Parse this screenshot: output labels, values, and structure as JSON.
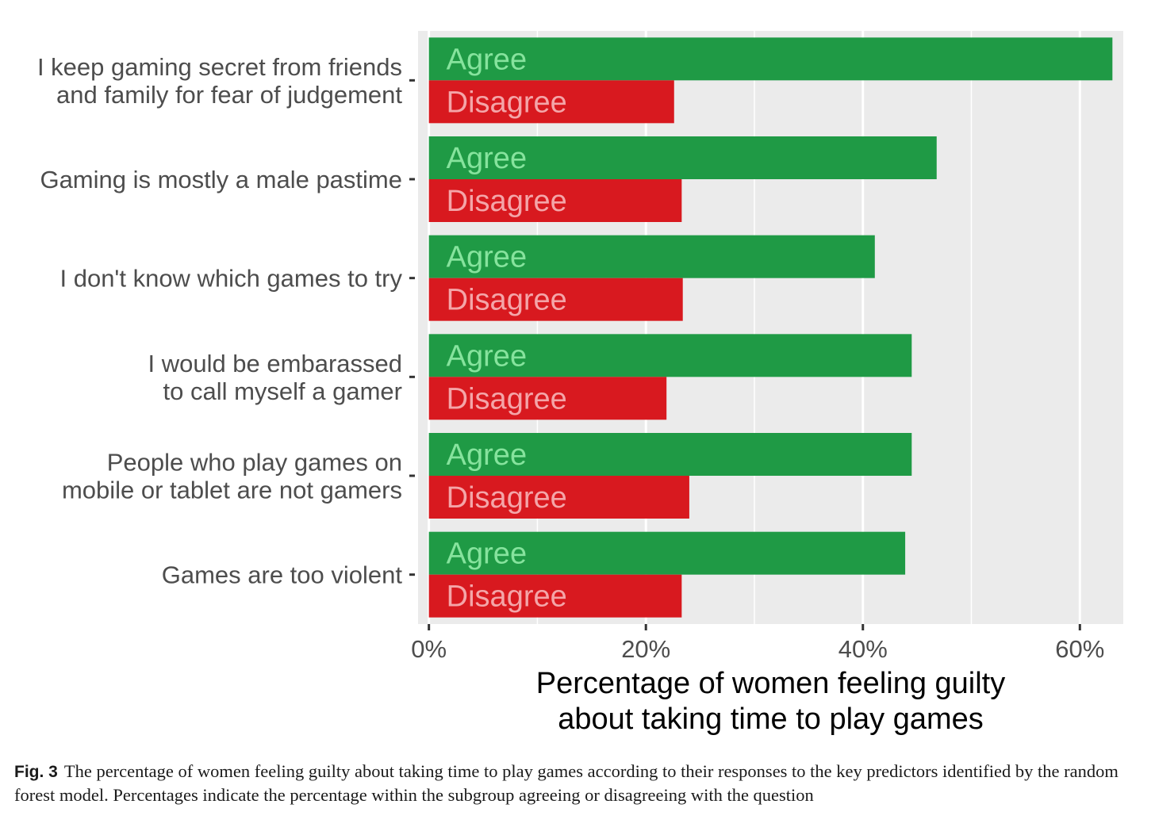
{
  "chart_data": {
    "type": "bar",
    "orientation": "horizontal",
    "categories": [
      [
        "I keep gaming secret from friends",
        "and family for fear of judgement"
      ],
      [
        "Gaming is mostly a male pastime"
      ],
      [
        "I don't know which games to try"
      ],
      [
        "I would be embarassed",
        "to call myself a gamer"
      ],
      [
        "People who play games on",
        "mobile or tablet are not gamers"
      ],
      [
        "Games are too violent"
      ]
    ],
    "series": [
      {
        "name": "Agree",
        "color": "#1f9a45",
        "text_color": "#86e39d",
        "values": [
          63.0,
          46.8,
          41.1,
          44.5,
          44.5,
          43.9
        ]
      },
      {
        "name": "Disagree",
        "color": "#d8191f",
        "text_color": "#f4a5a8",
        "values": [
          22.6,
          23.3,
          23.4,
          21.9,
          24.0,
          23.3
        ]
      }
    ],
    "xlim": [
      -1,
      64
    ],
    "x_ticks": [
      0,
      20,
      40,
      60
    ],
    "x_tick_labels": [
      "0%",
      "20%",
      "40%",
      "60%"
    ],
    "xlabel": [
      "Percentage of women feeling guilty",
      "about taking time to play games"
    ],
    "panel_background": "#ebebeb",
    "grid": true
  },
  "caption": {
    "label": "Fig. 3",
    "text": "The percentage of women feeling guilty about taking time to play games according to their responses to the key predictors identified by the random forest model. Percentages indicate the percentage within the subgroup agreeing or disagreeing with the question"
  }
}
